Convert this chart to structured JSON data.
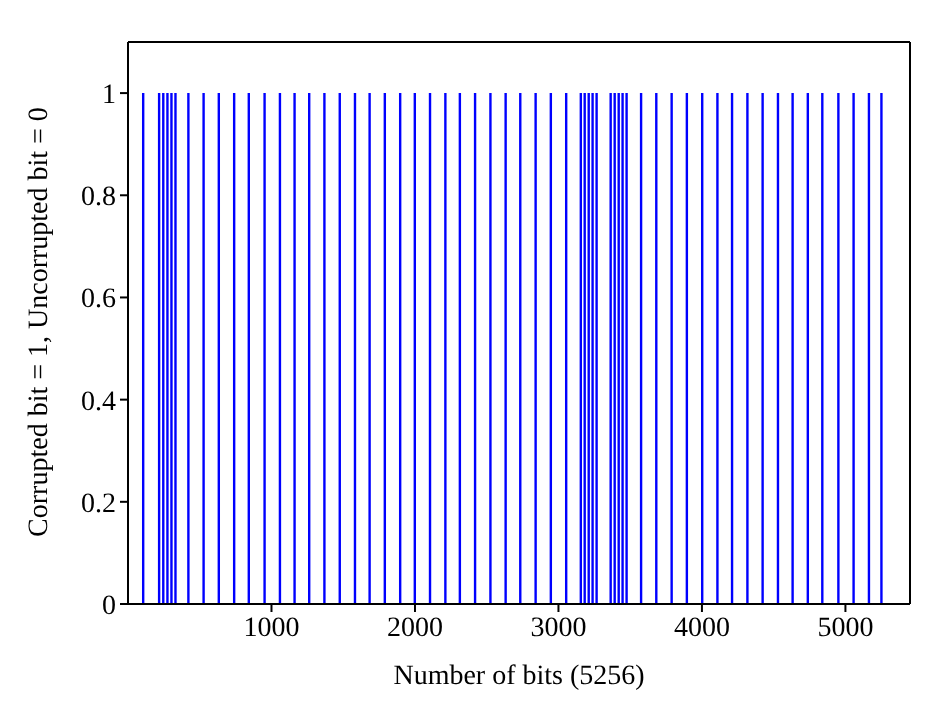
{
  "chart_data": {
    "type": "bar",
    "xlabel": "Number of bits (5256)",
    "ylabel": "Corrupted bit = 1, Uncorrupted bit = 0",
    "x": [
      111,
      222,
      251,
      280,
      308,
      336,
      426,
      532,
      638,
      745,
      847,
      957,
      1064,
      1166,
      1268,
      1374,
      1481,
      1587,
      1689,
      1795,
      1902,
      2004,
      2110,
      2217,
      2318,
      2424,
      2531,
      2637,
      2739,
      2846,
      2952,
      3059,
      3161,
      3188,
      3216,
      3243,
      3271,
      3369,
      3397,
      3425,
      3452,
      3480,
      3581,
      3687,
      3794,
      3900,
      4007,
      4113,
      4215,
      4322,
      4428,
      4535,
      4637,
      4743,
      4844,
      4956,
      5062,
      5169,
      5256
    ],
    "values": [
      1,
      1,
      1,
      1,
      1,
      1,
      1,
      1,
      1,
      1,
      1,
      1,
      1,
      1,
      1,
      1,
      1,
      1,
      1,
      1,
      1,
      1,
      1,
      1,
      1,
      1,
      1,
      1,
      1,
      1,
      1,
      1,
      1,
      1,
      1,
      1,
      1,
      1,
      1,
      1,
      1,
      1,
      1,
      1,
      1,
      1,
      1,
      1,
      1,
      1,
      1,
      1,
      1,
      1,
      1,
      1,
      1,
      1,
      1
    ],
    "color": "#0000ff",
    "xlim": [
      0,
      5450
    ],
    "xticks": [
      1000,
      2000,
      3000,
      4000,
      5000
    ],
    "ylim": [
      0,
      1.1
    ],
    "yticks": [
      0,
      0.2,
      0.4,
      0.6,
      0.8,
      1
    ],
    "grid": false,
    "legend": false
  }
}
